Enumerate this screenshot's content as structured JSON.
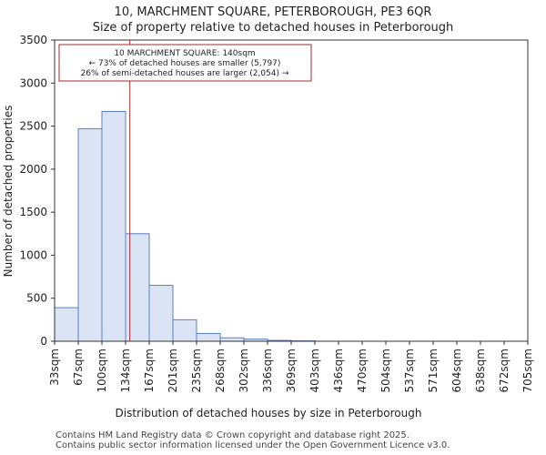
{
  "chart_data": {
    "type": "histogram",
    "title": "10, MARCHMENT SQUARE, PETERBOROUGH, PE3 6QR",
    "subtitle": "Size of property relative to detached houses in Peterborough",
    "xlabel": "Distribution of detached houses by size in Peterborough",
    "ylabel": "Number of detached properties",
    "ylim": [
      0,
      3500
    ],
    "yticks": [
      0,
      500,
      1000,
      1500,
      2000,
      2500,
      3000,
      3500
    ],
    "categories": [
      "33sqm",
      "67sqm",
      "100sqm",
      "134sqm",
      "167sqm",
      "201sqm",
      "235sqm",
      "268sqm",
      "302sqm",
      "336sqm",
      "369sqm",
      "403sqm",
      "436sqm",
      "470sqm",
      "504sqm",
      "537sqm",
      "571sqm",
      "604sqm",
      "638sqm",
      "672sqm",
      "705sqm"
    ],
    "values": [
      390,
      2470,
      2670,
      1250,
      650,
      250,
      90,
      40,
      25,
      10,
      5,
      0,
      0,
      0,
      0,
      0,
      0,
      0,
      0,
      0
    ],
    "bar_color": "#dae4f4",
    "bar_edge_color": "#5b7fc7",
    "marker": {
      "value_sqm": 140,
      "color": "#a0282a",
      "lines": [
        "10 MARCHMENT SQUARE: 140sqm",
        "← 73% of detached houses are smaller (5,797)",
        "26% of semi-detached houses are larger (2,054) →"
      ]
    }
  },
  "footer": {
    "line1": "Contains HM Land Registry data © Crown copyright and database right 2025.",
    "line2": "Contains public sector information licensed under the Open Government Licence v3.0."
  }
}
